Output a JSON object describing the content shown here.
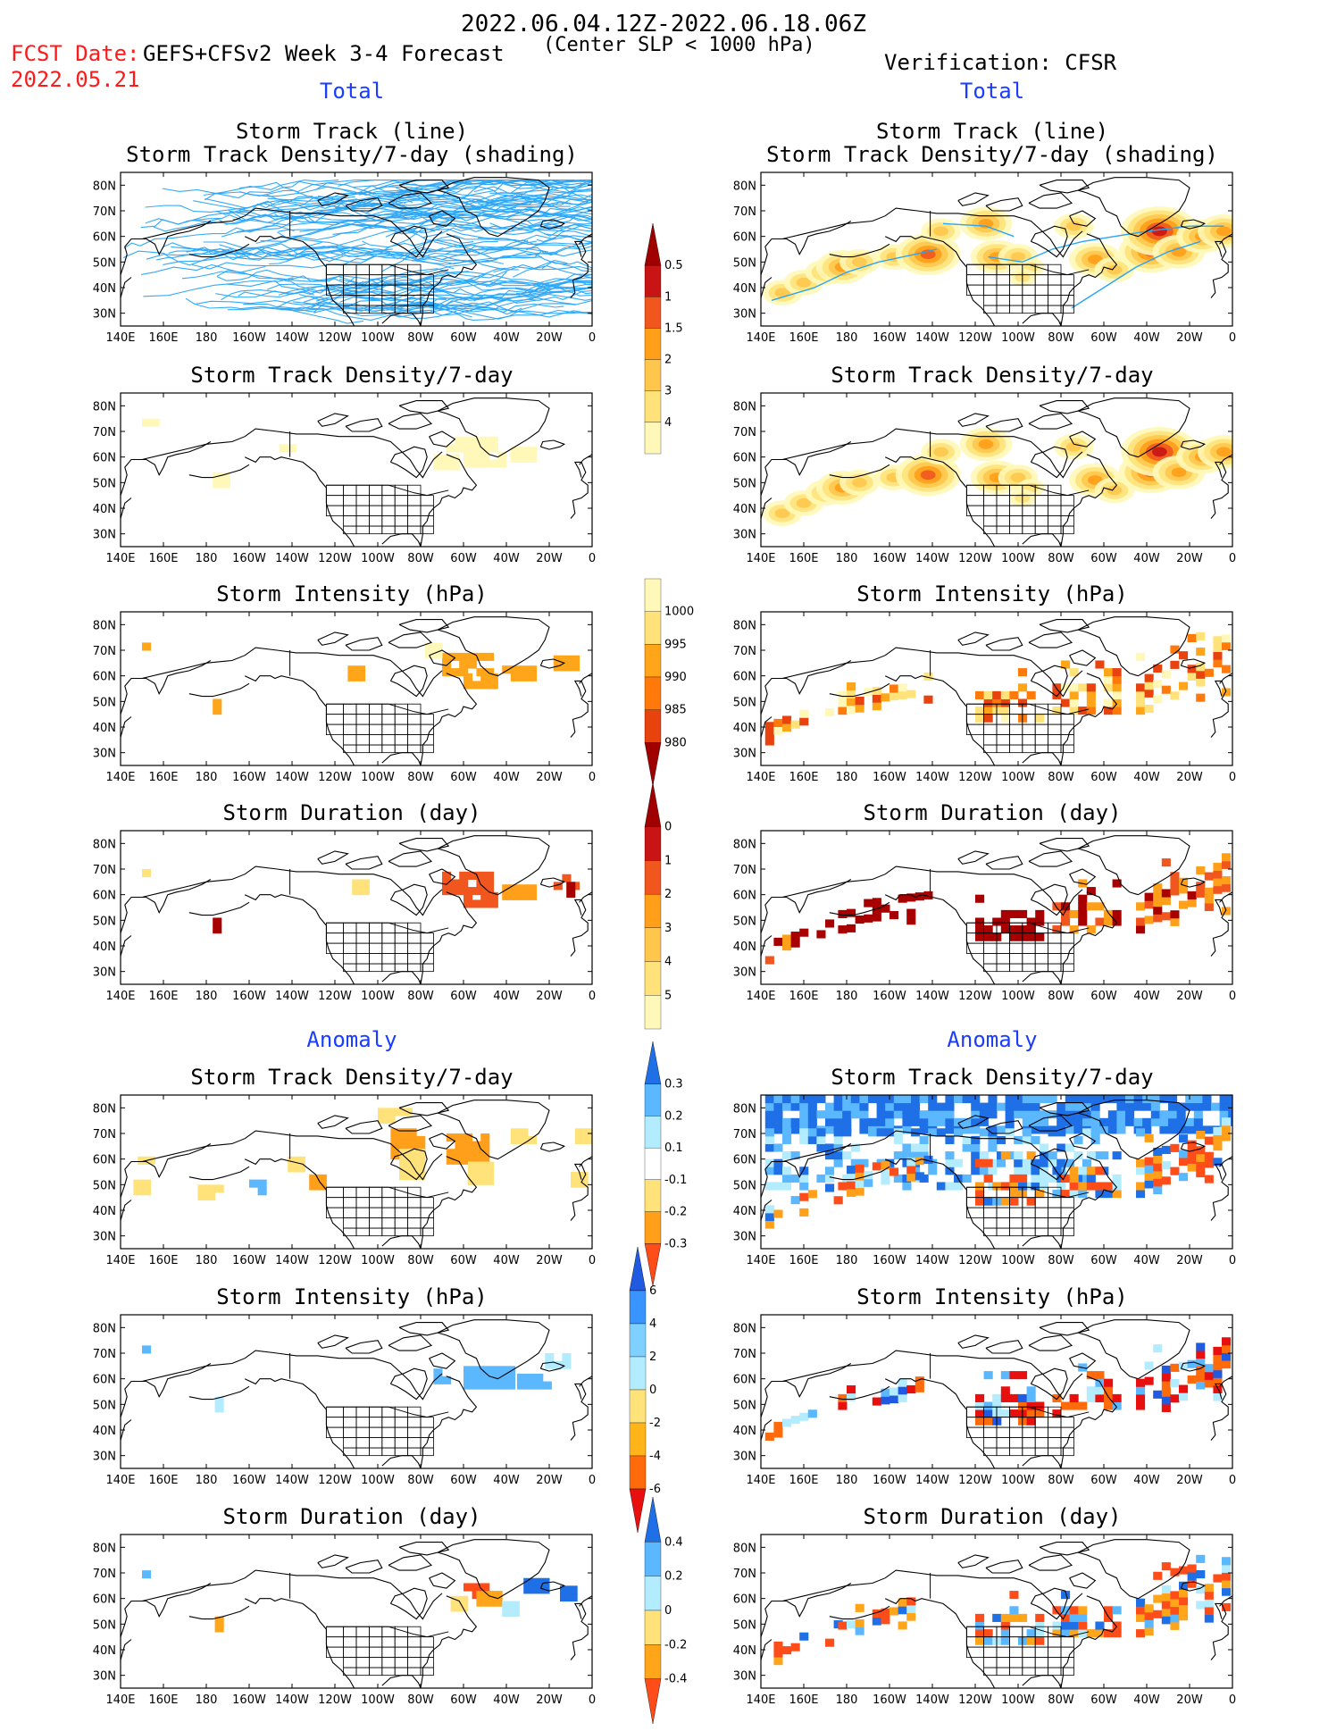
{
  "header": {
    "period": "2022.06.04.12Z-2022.06.18.06Z",
    "fcst_label": "FCST Date:",
    "fcst_date": "2022.05.21",
    "model": "GEFS+CFSv2 Week 3-4 Forecast",
    "criterion": "(Center SLP < 1000 hPa)",
    "verification": "Verification: CFSR"
  },
  "sections": {
    "total_left": "Total",
    "total_right": "Total",
    "anomaly_left": "Anomaly",
    "anomaly_right": "Anomaly"
  },
  "axes": {
    "lon_ticks": [
      "140E",
      "160E",
      "180",
      "160W",
      "140W",
      "120W",
      "100W",
      "80W",
      "60W",
      "40W",
      "20W",
      "0"
    ],
    "lat_ticks": [
      "80N",
      "70N",
      "60N",
      "50N",
      "40N",
      "30N"
    ]
  },
  "panels": [
    {
      "id": "l1",
      "side": "left",
      "title": [
        "Storm Track (line)",
        "Storm Track Density/7-day (shading)"
      ],
      "kind": "tracks-dense"
    },
    {
      "id": "r1",
      "side": "right",
      "title": [
        "Storm Track (line)",
        "Storm Track Density/7-day (shading)"
      ],
      "kind": "tracks-obs"
    },
    {
      "id": "l2",
      "side": "left",
      "title": [
        "Storm Track Density/7-day"
      ],
      "kind": "density-fcst"
    },
    {
      "id": "r2",
      "side": "right",
      "title": [
        "Storm Track Density/7-day"
      ],
      "kind": "density-obs"
    },
    {
      "id": "l3",
      "side": "left",
      "title": [
        "Storm Intensity (hPa)"
      ],
      "kind": "int-fcst"
    },
    {
      "id": "r3",
      "side": "right",
      "title": [
        "Storm Intensity (hPa)"
      ],
      "kind": "int-obs"
    },
    {
      "id": "l4",
      "side": "left",
      "title": [
        "Storm Duration (day)"
      ],
      "kind": "dur-fcst"
    },
    {
      "id": "r4",
      "side": "right",
      "title": [
        "Storm Duration (day)"
      ],
      "kind": "dur-obs"
    },
    {
      "id": "l5",
      "side": "left",
      "title": [
        "Storm Track Density/7-day"
      ],
      "kind": "anom-dens-fcst"
    },
    {
      "id": "r5",
      "side": "right",
      "title": [
        "Storm Track Density/7-day"
      ],
      "kind": "anom-dens-obs"
    },
    {
      "id": "l6",
      "side": "left",
      "title": [
        "Storm Intensity (hPa)"
      ],
      "kind": "anom-int-fcst"
    },
    {
      "id": "r6",
      "side": "right",
      "title": [
        "Storm Intensity (hPa)"
      ],
      "kind": "anom-int-obs"
    },
    {
      "id": "l7",
      "side": "left",
      "title": [
        "Storm Duration (day)"
      ],
      "kind": "anom-dur-fcst"
    },
    {
      "id": "r7",
      "side": "right",
      "title": [
        "Storm Duration (day)"
      ],
      "kind": "anom-dur-obs"
    }
  ],
  "colorbars": [
    {
      "id": "cb-density",
      "labels": [
        "0.5",
        "1",
        "1.5",
        "2",
        "3",
        "4"
      ],
      "colors": [
        "#fff8b8",
        "#ffe27a",
        "#ffc64d",
        "#ff9f1a",
        "#f0561e",
        "#c81414",
        "#a00000"
      ],
      "end": "top"
    },
    {
      "id": "cb-intensity",
      "labels": [
        "1000",
        "995",
        "990",
        "985",
        "980"
      ],
      "colors": [
        "#fff8b8",
        "#ffe27a",
        "#ffa51a",
        "#ff7a0a",
        "#e8420f",
        "#a00000"
      ],
      "end": "bottom"
    },
    {
      "id": "cb-duration",
      "labels": [
        "0",
        "1",
        "2",
        "3",
        "4",
        "5"
      ],
      "colors": [
        "#fff8b8",
        "#ffe27a",
        "#ffc64d",
        "#ff9f1a",
        "#f0561e",
        "#c81414",
        "#a00000"
      ],
      "end": "top"
    },
    {
      "id": "cb-anom-dens",
      "labels": [
        "0.3",
        "0.2",
        "0.1",
        "-0.1",
        "-0.2",
        "-0.3"
      ],
      "colors": [
        "#ff4d1a",
        "#ff9f1a",
        "#ffe27a",
        "#ffffff",
        "#b3ecff",
        "#5bb8ff",
        "#1f6fe6"
      ],
      "end": "both"
    },
    {
      "id": "cb-anom-int",
      "labels": [
        "6",
        "4",
        "2",
        "0",
        "-2",
        "-4",
        "-6"
      ],
      "colors": [
        "#e8100f",
        "#ff6a0a",
        "#ffb41a",
        "#ffe27a",
        "#b3ecff",
        "#7dd0ff",
        "#3a94ff",
        "#1f5ae0"
      ],
      "end": "both"
    },
    {
      "id": "cb-anom-dur",
      "labels": [
        "0.4",
        "0.2",
        "0",
        "-0.2",
        "-0.4"
      ],
      "colors": [
        "#ff4d1a",
        "#ffa51a",
        "#ffe27a",
        "#b3ecff",
        "#5bb8ff",
        "#1f6fe6"
      ],
      "end": "both"
    }
  ],
  "colors": {
    "track_line": "#2aa5f5",
    "coast": "#000000",
    "red_text": "#ff1a1a",
    "blue_text": "#1a3cff"
  }
}
